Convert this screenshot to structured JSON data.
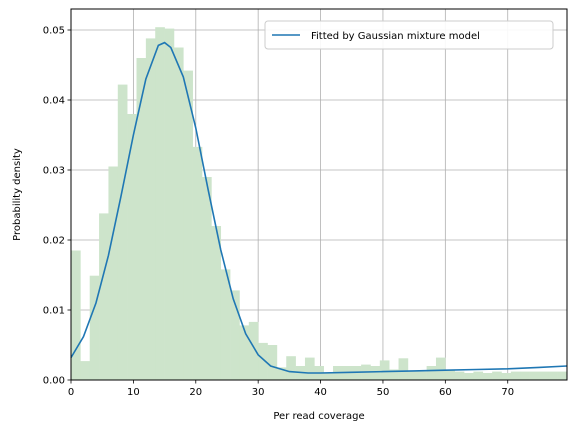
{
  "chart_data": {
    "type": "bar",
    "title": "",
    "xlabel": "Per read coverage",
    "ylabel": "Probability density",
    "xlim": [
      0,
      79.5
    ],
    "ylim": [
      0,
      0.053
    ],
    "grid": true,
    "legend": {
      "placement": "top-right",
      "entries": [
        "Fitted by Gaussian mixture model"
      ]
    },
    "x_ticks": [
      0,
      10,
      20,
      30,
      40,
      50,
      60,
      70
    ],
    "y_ticks": [
      0.0,
      0.01,
      0.02,
      0.03,
      0.04,
      0.05
    ],
    "x_tick_labels": [
      "0",
      "10",
      "20",
      "30",
      "40",
      "50",
      "60",
      "70"
    ],
    "y_tick_labels": [
      "0.00",
      "0.01",
      "0.02",
      "0.03",
      "0.04",
      "0.05"
    ],
    "colors": {
      "histogram": "#cde4cb",
      "curve": "#1f77b4",
      "grid": "#b0b0b0"
    },
    "histogram": {
      "bin_width": 1.5,
      "bin_start": 0,
      "values": [
        0.0185,
        0.0027,
        0.0149,
        0.0238,
        0.0305,
        0.0422,
        0.038,
        0.046,
        0.0488,
        0.0504,
        0.0502,
        0.0475,
        0.0442,
        0.0333,
        0.029,
        0.022,
        0.0158,
        0.0128,
        0.0078,
        0.0083,
        0.0053,
        0.005,
        0.0018,
        0.0034,
        0.002,
        0.0032,
        0.002,
        0.001,
        0.002,
        0.002,
        0.002,
        0.0022,
        0.002,
        0.0028,
        0.0015,
        0.0031,
        0.0012,
        0.0012,
        0.002,
        0.0032,
        0.0015,
        0.0012,
        0.001,
        0.0012,
        0.001,
        0.0012,
        0.001,
        0.0012,
        0.0012,
        0.0012,
        0.0012,
        0.0012,
        0.0012
      ]
    },
    "series": [
      {
        "name": "Fitted by Gaussian mixture model",
        "x": [
          0,
          2,
          4,
          6,
          8,
          10,
          12,
          14,
          15,
          16,
          18,
          20,
          22,
          24,
          26,
          28,
          30,
          32,
          35,
          38,
          40,
          45,
          50,
          55,
          60,
          65,
          70,
          75,
          79.5
        ],
        "y": [
          0.0032,
          0.0062,
          0.011,
          0.0178,
          0.0262,
          0.035,
          0.043,
          0.0478,
          0.0482,
          0.0475,
          0.0433,
          0.036,
          0.0271,
          0.0186,
          0.0116,
          0.0066,
          0.0036,
          0.002,
          0.0012,
          0.001,
          0.001,
          0.0011,
          0.0012,
          0.0013,
          0.0014,
          0.0015,
          0.0016,
          0.0018,
          0.002
        ]
      }
    ]
  }
}
